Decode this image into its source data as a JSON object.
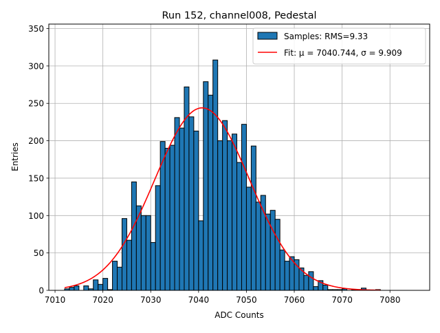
{
  "chart_data": {
    "type": "bar",
    "title": "Run 152, channel008, Pedestal",
    "xlabel": "ADC Counts",
    "ylabel": "Entries",
    "xlim": [
      7008.7,
      7088.3
    ],
    "ylim": [
      0,
      356
    ],
    "x_ticks": [
      7010,
      7020,
      7030,
      7040,
      7050,
      7060,
      7070,
      7080
    ],
    "y_ticks": [
      0,
      50,
      100,
      150,
      200,
      250,
      300,
      350
    ],
    "grid": true,
    "legend_position": "top-right",
    "bin_width": 1,
    "histogram": {
      "name": "Samples: RMS=9.33",
      "color": "#1f77b4",
      "edge_color": "#000000",
      "bin_left_edges": [
        7012,
        7013,
        7014,
        7015,
        7016,
        7017,
        7018,
        7019,
        7020,
        7021,
        7022,
        7023,
        7024,
        7025,
        7026,
        7027,
        7028,
        7029,
        7030,
        7031,
        7032,
        7033,
        7034,
        7035,
        7036,
        7037,
        7038,
        7039,
        7040,
        7041,
        7042,
        7043,
        7044,
        7045,
        7046,
        7047,
        7048,
        7049,
        7050,
        7051,
        7052,
        7053,
        7054,
        7055,
        7056,
        7057,
        7058,
        7059,
        7060,
        7061,
        7062,
        7063,
        7064,
        7065,
        7066,
        7067,
        7068,
        7069,
        7070,
        7071,
        7072,
        7073,
        7074,
        7075,
        7076,
        7077
      ],
      "counts": [
        2,
        4,
        6,
        0,
        6,
        2,
        14,
        8,
        16,
        1,
        39,
        31,
        96,
        67,
        145,
        113,
        100,
        100,
        64,
        140,
        199,
        190,
        194,
        231,
        217,
        272,
        232,
        213,
        93,
        279,
        261,
        308,
        200,
        227,
        200,
        209,
        171,
        222,
        138,
        193,
        118,
        127,
        102,
        107,
        95,
        54,
        39,
        45,
        41,
        30,
        20,
        25,
        5,
        13,
        7,
        1,
        1,
        1,
        2,
        0,
        1,
        0,
        3,
        0,
        0,
        1
      ]
    },
    "fit": {
      "name": "Fit: μ = 7040.744, σ = 9.909",
      "color": "#ff0000",
      "mu": 7040.744,
      "sigma": 9.909,
      "amplitude": 244,
      "x_range": [
        7012,
        7078
      ]
    }
  }
}
